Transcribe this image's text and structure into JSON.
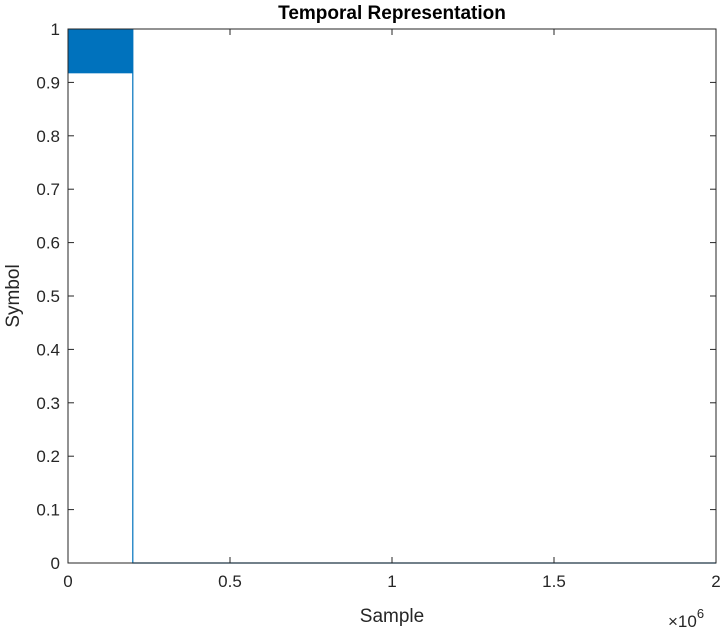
{
  "chart_data": {
    "type": "line",
    "title": "Temporal Representation",
    "xlabel": "Sample",
    "ylabel": "Symbol",
    "xlim": [
      0,
      2000000
    ],
    "ylim": [
      0,
      1
    ],
    "x_ticks": [
      0,
      500000,
      1000000,
      1500000,
      2000000
    ],
    "x_tick_labels": [
      "0",
      "0.5",
      "1",
      "1.5",
      "2"
    ],
    "x_exponent_base": "×10",
    "x_exponent": "6",
    "y_ticks": [
      0,
      0.1,
      0.2,
      0.3,
      0.4,
      0.5,
      0.6,
      0.7,
      0.8,
      0.9,
      1
    ],
    "y_tick_labels": [
      "0",
      "0.1",
      "0.2",
      "0.3",
      "0.4",
      "0.5",
      "0.6",
      "0.7",
      "0.8",
      "0.9",
      "1"
    ],
    "grid": false,
    "box": true,
    "series": [
      {
        "color": "#0072BD",
        "dense_band": {
          "x_start": 0,
          "x_end": 200000,
          "y_low": 0.917,
          "y_high": 1
        },
        "points": [
          [
            200000,
            1
          ],
          [
            200000,
            0
          ],
          [
            2000000,
            0
          ]
        ]
      }
    ]
  }
}
